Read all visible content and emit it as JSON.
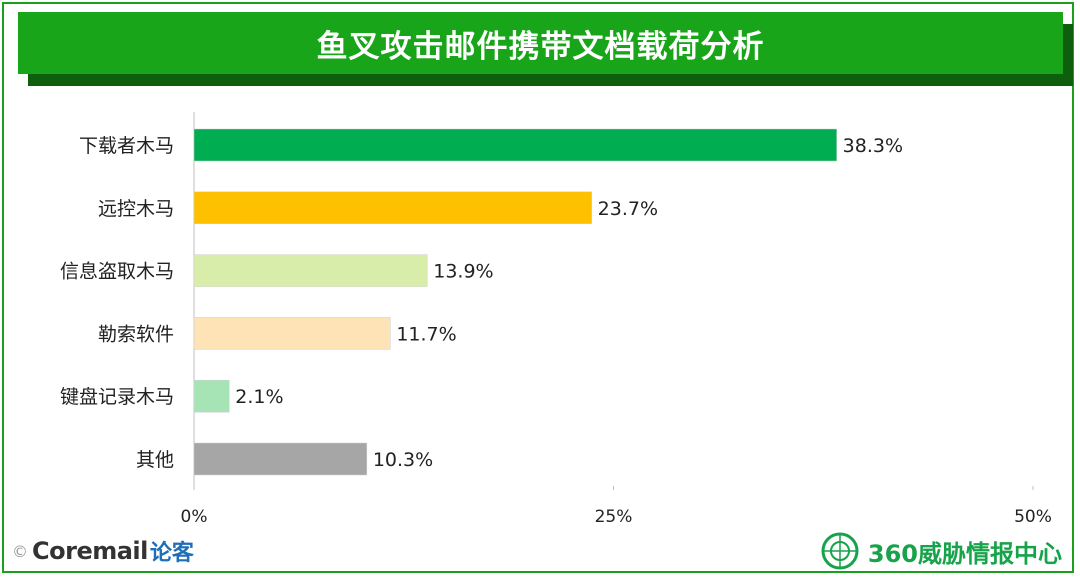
{
  "title": "鱼叉攻击邮件携带文档载荷分析",
  "chart_data": {
    "type": "bar",
    "orientation": "horizontal",
    "title": "鱼叉攻击邮件携带文档载荷分析",
    "categories": [
      "下载者木马",
      "远控木马",
      "信息盗取木马",
      "勒索软件",
      "键盘记录木马",
      "其他"
    ],
    "values": [
      38.3,
      23.7,
      13.9,
      11.7,
      2.1,
      10.3
    ],
    "value_labels": [
      "38.3%",
      "23.7%",
      "13.9%",
      "11.7%",
      "2.1%",
      "10.3%"
    ],
    "colors": [
      "#00ad50",
      "#ffc000",
      "#d8edaa",
      "#fde3b6",
      "#a6e4b5",
      "#a6a6a6"
    ],
    "xlim": [
      0,
      50
    ],
    "xticks": [
      0,
      25,
      50
    ],
    "xtick_labels": [
      "0%",
      "25%",
      "50%"
    ],
    "xlabel": "",
    "ylabel": "",
    "grid": false,
    "legend": "none"
  },
  "footer": {
    "left_copyright": "©",
    "left_brand": "Coremail",
    "left_brand_cn": "论客",
    "right_brand": "360威胁情报中心"
  },
  "icons": {
    "right_logo": "globe-emblem-icon"
  }
}
